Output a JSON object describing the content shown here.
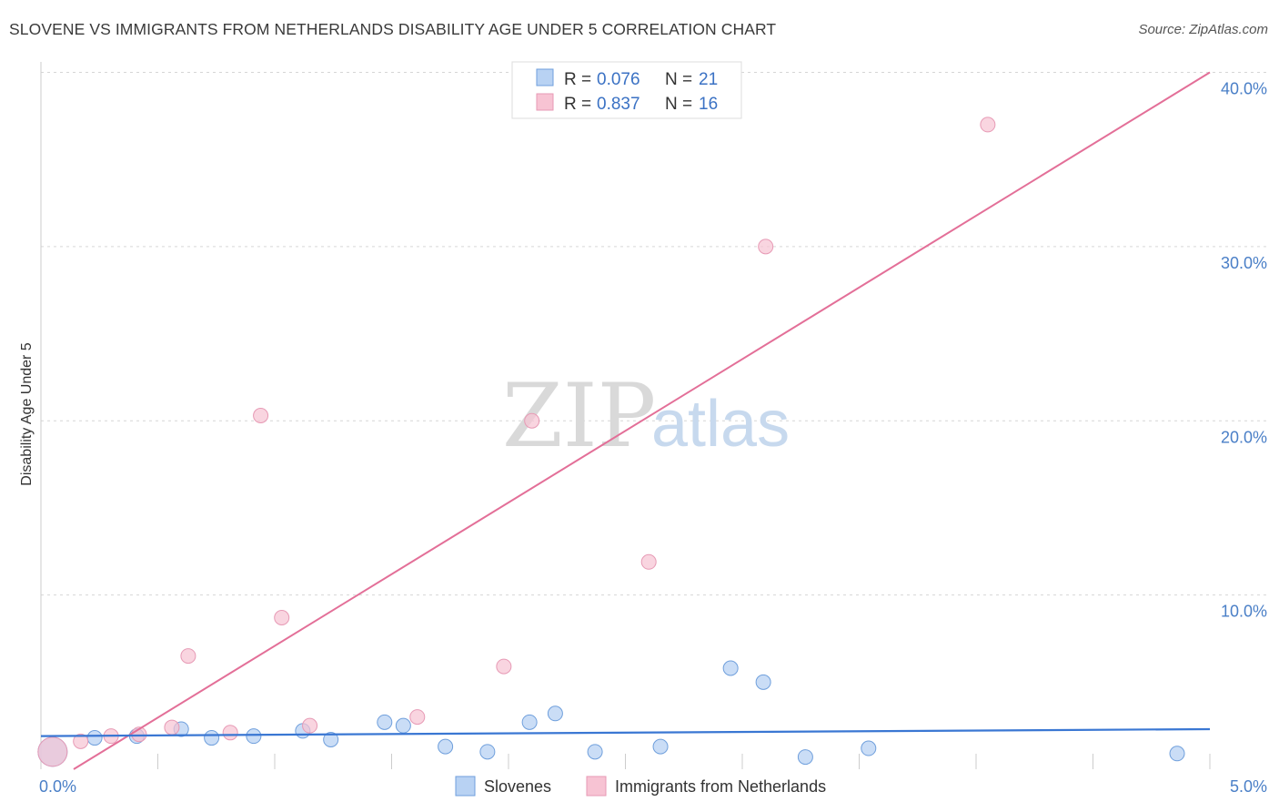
{
  "title": "SLOVENE VS IMMIGRANTS FROM NETHERLANDS DISABILITY AGE UNDER 5 CORRELATION CHART",
  "source": "Source: ZipAtlas.com",
  "colors": {
    "blue": "#3a77d3",
    "pink": "#e36f98",
    "blue_fill": "#b8d2f3",
    "pink_fill": "#f7c3d3",
    "tick": "#4a7fc7"
  },
  "watermark": {
    "zip": "ZIP",
    "atlas": "atlas"
  },
  "legend": {
    "rows": [
      {
        "r_label": "R = ",
        "r_value": "0.076",
        "n_label": "N = ",
        "n_value": "21"
      },
      {
        "r_label": "R = ",
        "r_value": "0.837",
        "n_label": "N = ",
        "n_value": "16"
      }
    ]
  },
  "chart_data": {
    "type": "scatter",
    "title": "SLOVENE VS IMMIGRANTS FROM NETHERLANDS DISABILITY AGE UNDER 5 CORRELATION CHART",
    "xlabel": "",
    "ylabel": "Disability Age Under 5",
    "xlim": [
      0,
      5
    ],
    "ylim": [
      0,
      40
    ],
    "x_tick_labels": [
      "0.0%",
      "5.0%"
    ],
    "y_ticks": [
      10,
      20,
      30,
      40
    ],
    "y_tick_labels": [
      "10.0%",
      "20.0%",
      "30.0%",
      "40.0%"
    ],
    "grid": true,
    "series": [
      {
        "name": "Slovenes",
        "color": "#3a77d3",
        "r": 0.076,
        "n": 21,
        "points": [
          {
            "x": 0.05,
            "y": 1.0,
            "big": true
          },
          {
            "x": 0.23,
            "y": 1.8
          },
          {
            "x": 0.41,
            "y": 1.9
          },
          {
            "x": 0.6,
            "y": 2.3
          },
          {
            "x": 0.73,
            "y": 1.8
          },
          {
            "x": 0.91,
            "y": 1.9
          },
          {
            "x": 1.12,
            "y": 2.2
          },
          {
            "x": 1.24,
            "y": 1.7
          },
          {
            "x": 1.47,
            "y": 2.7
          },
          {
            "x": 1.55,
            "y": 2.5
          },
          {
            "x": 1.73,
            "y": 1.3
          },
          {
            "x": 1.91,
            "y": 1.0
          },
          {
            "x": 2.09,
            "y": 2.7
          },
          {
            "x": 2.2,
            "y": 3.2
          },
          {
            "x": 2.37,
            "y": 1.0
          },
          {
            "x": 2.65,
            "y": 1.3
          },
          {
            "x": 2.95,
            "y": 5.8
          },
          {
            "x": 3.09,
            "y": 5.0
          },
          {
            "x": 3.27,
            "y": 0.7
          },
          {
            "x": 3.54,
            "y": 1.2
          },
          {
            "x": 4.86,
            "y": 0.9
          }
        ],
        "trend": {
          "x1": 0.0,
          "y1": 1.9,
          "x2": 5.0,
          "y2": 2.3
        }
      },
      {
        "name": "Immigrants from Netherlands",
        "color": "#e36f98",
        "r": 0.837,
        "n": 16,
        "points": [
          {
            "x": 0.05,
            "y": 1.0,
            "big": true
          },
          {
            "x": 0.17,
            "y": 1.6
          },
          {
            "x": 0.3,
            "y": 1.9
          },
          {
            "x": 0.42,
            "y": 2.0
          },
          {
            "x": 0.56,
            "y": 2.4
          },
          {
            "x": 0.63,
            "y": 6.5
          },
          {
            "x": 0.81,
            "y": 2.1
          },
          {
            "x": 0.94,
            "y": 20.3
          },
          {
            "x": 1.03,
            "y": 8.7
          },
          {
            "x": 1.15,
            "y": 2.5
          },
          {
            "x": 1.61,
            "y": 3.0
          },
          {
            "x": 1.98,
            "y": 5.9
          },
          {
            "x": 2.1,
            "y": 20.0
          },
          {
            "x": 2.6,
            "y": 11.9
          },
          {
            "x": 3.1,
            "y": 30.0
          },
          {
            "x": 4.05,
            "y": 37.0
          }
        ],
        "trend": {
          "x1": 0.14,
          "y1": 0.0,
          "x2": 5.0,
          "y2": 40.0
        }
      }
    ]
  },
  "bottom_legend": [
    {
      "label": "Slovenes",
      "color": "#3a77d3"
    },
    {
      "label": "Immigrants from Netherlands",
      "color": "#e36f98"
    }
  ]
}
